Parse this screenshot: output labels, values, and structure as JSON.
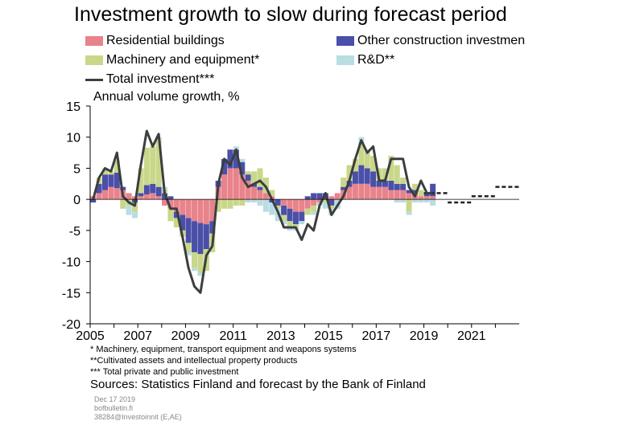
{
  "title": "Investment growth to slow during forecast period",
  "legend": [
    {
      "label": "Residential buildings",
      "color": "#e8838b",
      "kind": "bar"
    },
    {
      "label": "Other construction investmen",
      "color": "#4a4fa8",
      "kind": "bar"
    },
    {
      "label": "Machinery and equipment*",
      "color": "#c9d78a",
      "kind": "bar"
    },
    {
      "label": "R&D**",
      "color": "#b8dde2",
      "kind": "bar"
    },
    {
      "label": "Total investment***",
      "color": "#3b3f3f",
      "kind": "line"
    }
  ],
  "footnotes": [
    "* Machinery, equipment, transport equipment and weapons systems",
    "**Cultivated assets and intellectual property products",
    "*** Total private and public investment"
  ],
  "sources": "Sources: Statistics Finland and forecast by the Bank of Finland",
  "meta": [
    "Dec 17 2019",
    "bofbulletin.fi",
    "38284@Investoinnit  (E,AE)"
  ],
  "chart_data": {
    "type": "bar",
    "stacked": true,
    "subtitle": "Annual volume growth, %",
    "ylim": [
      -20,
      15
    ],
    "yticks": [
      15,
      10,
      5,
      0,
      -5,
      -10,
      -15,
      -20
    ],
    "xlim": [
      2005,
      2023
    ],
    "xticks": [
      "2005",
      "2007",
      "2009",
      "2011",
      "2013",
      "2015",
      "2017",
      "2019",
      "2021"
    ],
    "bar_x": [
      2005.125,
      2005.375,
      2005.625,
      2005.875,
      2006.125,
      2006.375,
      2006.625,
      2006.875,
      2007.125,
      2007.375,
      2007.625,
      2007.875,
      2008.125,
      2008.375,
      2008.625,
      2008.875,
      2009.125,
      2009.375,
      2009.625,
      2009.875,
      2010.125,
      2010.375,
      2010.625,
      2010.875,
      2011.125,
      2011.375,
      2011.625,
      2011.875,
      2012.125,
      2012.375,
      2012.625,
      2012.875,
      2013.125,
      2013.375,
      2013.625,
      2013.875,
      2014.125,
      2014.375,
      2014.625,
      2014.875,
      2015.125,
      2015.375,
      2015.625,
      2015.875,
      2016.125,
      2016.375,
      2016.625,
      2016.875,
      2017.125,
      2017.375,
      2017.625,
      2017.875,
      2018.125,
      2018.375,
      2018.625,
      2018.875,
      2019.125,
      2019.375
    ],
    "series": [
      {
        "name": "Residential buildings",
        "color": "#e8838b",
        "values": [
          0.5,
          1.0,
          1.5,
          2.0,
          1.8,
          1.5,
          1.0,
          0.5,
          0.5,
          0.8,
          1.0,
          0.5,
          -1.0,
          -1.5,
          -2.0,
          -2.5,
          -3.0,
          -3.5,
          -3.8,
          -4.0,
          -3.5,
          2.0,
          4.0,
          5.0,
          5.0,
          4.0,
          3.0,
          2.0,
          1.5,
          1.0,
          0.5,
          0.0,
          -1.0,
          -1.5,
          -2.0,
          -2.0,
          -1.5,
          -1.0,
          -0.5,
          0.0,
          0.5,
          1.0,
          1.5,
          2.0,
          2.5,
          2.5,
          2.5,
          2.0,
          2.0,
          2.0,
          1.5,
          1.5,
          1.5,
          1.0,
          1.0,
          0.5,
          0.5,
          0.5
        ]
      },
      {
        "name": "Other construction investmen",
        "color": "#4a4fa8",
        "values": [
          -0.5,
          1.5,
          2.5,
          2.0,
          2.5,
          0.5,
          0.0,
          -0.5,
          0.5,
          1.5,
          1.5,
          1.5,
          1.0,
          0.5,
          -1.0,
          -2.5,
          -4.0,
          -5.0,
          -5.0,
          -4.0,
          -2.0,
          1.0,
          2.5,
          3.0,
          3.0,
          2.0,
          1.0,
          0.5,
          0.5,
          0.0,
          -0.5,
          -1.0,
          -1.5,
          -2.0,
          -2.0,
          -1.5,
          0.5,
          1.0,
          1.0,
          1.0,
          -1.0,
          0.0,
          0.5,
          1.0,
          2.0,
          3.0,
          2.5,
          2.5,
          1.0,
          1.0,
          1.5,
          1.0,
          1.0,
          0.5,
          0.5,
          0.0,
          0.5,
          2.0
        ]
      },
      {
        "name": "Machinery and equipment*",
        "color": "#c9d78a",
        "values": [
          0.0,
          1.0,
          1.0,
          0.5,
          2.0,
          -1.5,
          -1.0,
          -1.5,
          4.0,
          6.0,
          6.0,
          7.5,
          0.5,
          -2.0,
          -1.5,
          -1.0,
          -1.5,
          -2.5,
          -3.0,
          -3.5,
          -3.0,
          -2.0,
          -1.5,
          -1.5,
          -1.0,
          -1.0,
          0.5,
          2.0,
          3.0,
          2.5,
          1.0,
          -0.5,
          -1.0,
          -1.0,
          -0.5,
          0.0,
          -1.0,
          -1.0,
          0.0,
          -0.5,
          -0.5,
          0.0,
          1.5,
          2.5,
          2.0,
          3.5,
          2.5,
          2.5,
          2.0,
          2.0,
          4.0,
          3.0,
          1.0,
          -2.0,
          1.0,
          1.0,
          0.0,
          0.0
        ]
      },
      {
        "name": "R&D**",
        "color": "#b8dde2",
        "values": [
          0.0,
          0.0,
          0.0,
          0.0,
          0.0,
          0.0,
          -1.5,
          -1.0,
          0.0,
          0.0,
          0.0,
          0.5,
          0.5,
          0.0,
          0.0,
          0.0,
          -0.5,
          -0.5,
          -0.5,
          0.0,
          0.0,
          0.0,
          0.0,
          0.0,
          0.5,
          0.5,
          -0.5,
          -0.5,
          -1.0,
          -2.0,
          -2.0,
          -2.0,
          -0.5,
          -0.5,
          -0.5,
          -0.5,
          0.0,
          -0.5,
          -0.5,
          -1.0,
          -1.0,
          -1.5,
          0.0,
          0.0,
          0.0,
          1.0,
          0.5,
          0.0,
          0.0,
          0.0,
          0.0,
          -0.5,
          -0.5,
          -0.5,
          -0.5,
          -0.5,
          -0.5,
          -1.0
        ]
      }
    ],
    "total_investment": {
      "name": "Total investment***",
      "color": "#3b3f3f",
      "x": [
        2005.125,
        2005.375,
        2005.625,
        2005.875,
        2006.125,
        2006.375,
        2006.625,
        2006.875,
        2007.125,
        2007.375,
        2007.625,
        2007.875,
        2008.125,
        2008.375,
        2008.625,
        2008.875,
        2009.125,
        2009.375,
        2009.625,
        2009.875,
        2010.125,
        2010.375,
        2010.625,
        2010.875,
        2011.125,
        2011.375,
        2011.625,
        2011.875,
        2012.125,
        2012.375,
        2012.625,
        2012.875,
        2013.125,
        2013.375,
        2013.625,
        2013.875,
        2014.125,
        2014.375,
        2014.625,
        2014.875,
        2015.125,
        2015.375,
        2015.625,
        2015.875,
        2016.125,
        2016.375,
        2016.625,
        2016.875,
        2017.125,
        2017.375,
        2017.625,
        2017.875,
        2018.125,
        2018.375,
        2018.625,
        2018.875,
        2019.125,
        2019.375
      ],
      "y": [
        0.0,
        3.5,
        5.0,
        4.5,
        7.5,
        0.5,
        -0.5,
        -1.0,
        5.5,
        11.0,
        8.5,
        10.5,
        1.0,
        -1.5,
        -1.5,
        -6.0,
        -11.0,
        -14.0,
        -15.0,
        -9.0,
        -7.5,
        2.5,
        6.5,
        5.5,
        8.0,
        3.5,
        2.0,
        2.5,
        3.0,
        2.0,
        0.0,
        -2.0,
        -4.5,
        -4.5,
        -4.5,
        -6.5,
        -4.0,
        -5.0,
        -1.0,
        1.0,
        -2.5,
        -1.0,
        0.5,
        3.0,
        6.5,
        9.5,
        7.5,
        8.5,
        3.0,
        3.0,
        6.5,
        6.5,
        6.5,
        2.0,
        0.5,
        3.0,
        1.0,
        1.0
      ]
    },
    "forecast": [
      {
        "year": 2019,
        "value": 1.0
      },
      {
        "year": 2020,
        "value": -0.5
      },
      {
        "year": 2021,
        "value": 0.5
      },
      {
        "year": 2022,
        "value": 2.0
      }
    ]
  }
}
